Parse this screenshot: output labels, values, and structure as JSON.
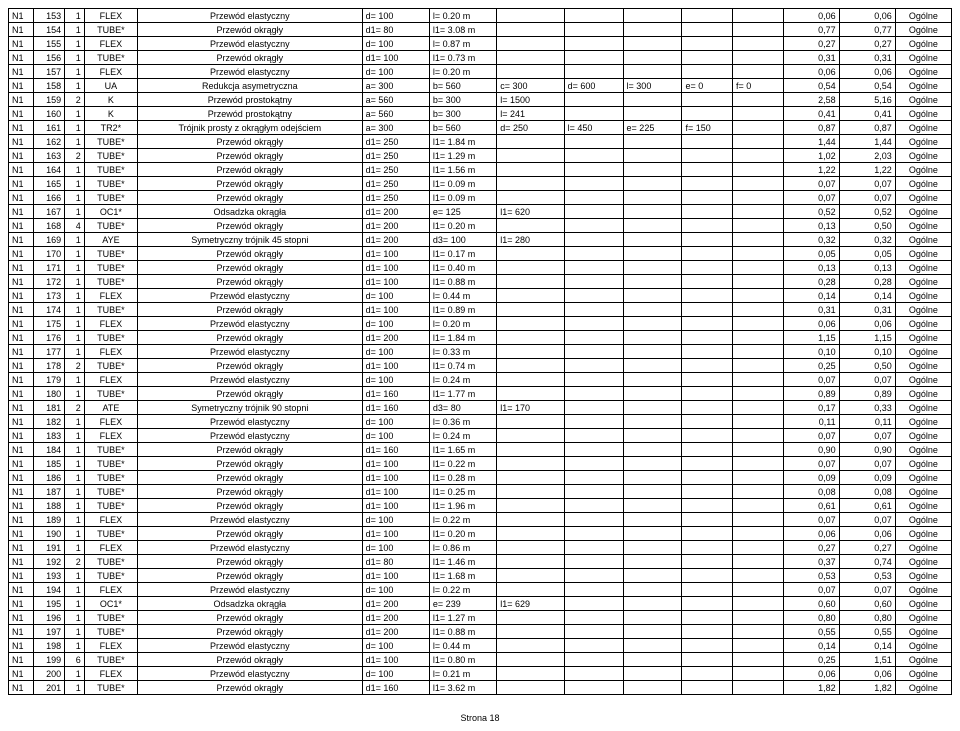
{
  "table": {
    "background_color": "#ffffff",
    "border_color": "#000000",
    "font_size": 9,
    "columns": [
      "c0",
      "c1",
      "c2",
      "c3",
      "c4",
      "c5",
      "c6",
      "c7",
      "c8",
      "c9",
      "c10",
      "c11",
      "c12",
      "c13",
      "c14"
    ],
    "rows": [
      [
        "N1",
        "153",
        "1",
        "FLEX",
        "Przewód elastyczny",
        "d= 100",
        "l= 0.20 m",
        "",
        "",
        "",
        "",
        "",
        "0,06",
        "0,06",
        "Ogólne"
      ],
      [
        "N1",
        "154",
        "1",
        "TUBE*",
        "Przewód okrągły",
        "d1= 80",
        "l1= 3.08 m",
        "",
        "",
        "",
        "",
        "",
        "0,77",
        "0,77",
        "Ogólne"
      ],
      [
        "N1",
        "155",
        "1",
        "FLEX",
        "Przewód elastyczny",
        "d= 100",
        "l= 0.87 m",
        "",
        "",
        "",
        "",
        "",
        "0,27",
        "0,27",
        "Ogólne"
      ],
      [
        "N1",
        "156",
        "1",
        "TUBE*",
        "Przewód okrągły",
        "d1= 100",
        "l1= 0.73 m",
        "",
        "",
        "",
        "",
        "",
        "0,31",
        "0,31",
        "Ogólne"
      ],
      [
        "N1",
        "157",
        "1",
        "FLEX",
        "Przewód elastyczny",
        "d= 100",
        "l= 0.20 m",
        "",
        "",
        "",
        "",
        "",
        "0,06",
        "0,06",
        "Ogólne"
      ],
      [
        "N1",
        "158",
        "1",
        "UA",
        "Redukcja asymetryczna",
        "a= 300",
        "b= 560",
        "c= 300",
        "d= 600",
        "l= 300",
        "e= 0",
        "f= 0",
        "0,54",
        "0,54",
        "Ogólne"
      ],
      [
        "N1",
        "159",
        "2",
        "K",
        "Przewód prostokątny",
        "a= 560",
        "b= 300",
        "l= 1500",
        "",
        "",
        "",
        "",
        "2,58",
        "5,16",
        "Ogólne"
      ],
      [
        "N1",
        "160",
        "1",
        "K",
        "Przewód prostokątny",
        "a= 560",
        "b= 300",
        "l= 241",
        "",
        "",
        "",
        "",
        "0,41",
        "0,41",
        "Ogólne"
      ],
      [
        "N1",
        "161",
        "1",
        "TR2*",
        "Trójnik prosty z okrągłym odejściem",
        "a= 300",
        "b= 560",
        "d= 250",
        "l= 450",
        "e= 225",
        "f= 150",
        "",
        "0,87",
        "0,87",
        "Ogólne"
      ],
      [
        "N1",
        "162",
        "1",
        "TUBE*",
        "Przewód okrągły",
        "d1= 250",
        "l1= 1.84 m",
        "",
        "",
        "",
        "",
        "",
        "1,44",
        "1,44",
        "Ogólne"
      ],
      [
        "N1",
        "163",
        "2",
        "TUBE*",
        "Przewód okrągły",
        "d1= 250",
        "l1= 1.29 m",
        "",
        "",
        "",
        "",
        "",
        "1,02",
        "2,03",
        "Ogólne"
      ],
      [
        "N1",
        "164",
        "1",
        "TUBE*",
        "Przewód okrągły",
        "d1= 250",
        "l1= 1.56 m",
        "",
        "",
        "",
        "",
        "",
        "1,22",
        "1,22",
        "Ogólne"
      ],
      [
        "N1",
        "165",
        "1",
        "TUBE*",
        "Przewód okrągły",
        "d1= 250",
        "l1= 0.09 m",
        "",
        "",
        "",
        "",
        "",
        "0,07",
        "0,07",
        "Ogólne"
      ],
      [
        "N1",
        "166",
        "1",
        "TUBE*",
        "Przewód okrągły",
        "d1= 250",
        "l1= 0.09 m",
        "",
        "",
        "",
        "",
        "",
        "0,07",
        "0,07",
        "Ogólne"
      ],
      [
        "N1",
        "167",
        "1",
        "OC1*",
        "Odsadzka okrągła",
        "d1= 200",
        "e= 125",
        "l1= 620",
        "",
        "",
        "",
        "",
        "0,52",
        "0,52",
        "Ogólne"
      ],
      [
        "N1",
        "168",
        "4",
        "TUBE*",
        "Przewód okrągły",
        "d1= 200",
        "l1= 0.20 m",
        "",
        "",
        "",
        "",
        "",
        "0,13",
        "0,50",
        "Ogólne"
      ],
      [
        "N1",
        "169",
        "1",
        "AYE",
        "Symetryczny trójnik 45 stopni",
        "d1= 200",
        "d3= 100",
        "l1= 280",
        "",
        "",
        "",
        "",
        "0,32",
        "0,32",
        "Ogólne"
      ],
      [
        "N1",
        "170",
        "1",
        "TUBE*",
        "Przewód okrągły",
        "d1= 100",
        "l1= 0.17 m",
        "",
        "",
        "",
        "",
        "",
        "0,05",
        "0,05",
        "Ogólne"
      ],
      [
        "N1",
        "171",
        "1",
        "TUBE*",
        "Przewód okrągły",
        "d1= 100",
        "l1= 0.40 m",
        "",
        "",
        "",
        "",
        "",
        "0,13",
        "0,13",
        "Ogólne"
      ],
      [
        "N1",
        "172",
        "1",
        "TUBE*",
        "Przewód okrągły",
        "d1= 100",
        "l1= 0.88 m",
        "",
        "",
        "",
        "",
        "",
        "0,28",
        "0,28",
        "Ogólne"
      ],
      [
        "N1",
        "173",
        "1",
        "FLEX",
        "Przewód elastyczny",
        "d= 100",
        "l= 0.44 m",
        "",
        "",
        "",
        "",
        "",
        "0,14",
        "0,14",
        "Ogólne"
      ],
      [
        "N1",
        "174",
        "1",
        "TUBE*",
        "Przewód okrągły",
        "d1= 100",
        "l1= 0.89 m",
        "",
        "",
        "",
        "",
        "",
        "0,31",
        "0,31",
        "Ogólne"
      ],
      [
        "N1",
        "175",
        "1",
        "FLEX",
        "Przewód elastyczny",
        "d= 100",
        "l= 0.20 m",
        "",
        "",
        "",
        "",
        "",
        "0,06",
        "0,06",
        "Ogólne"
      ],
      [
        "N1",
        "176",
        "1",
        "TUBE*",
        "Przewód okrągły",
        "d1= 200",
        "l1= 1.84 m",
        "",
        "",
        "",
        "",
        "",
        "1,15",
        "1,15",
        "Ogólne"
      ],
      [
        "N1",
        "177",
        "1",
        "FLEX",
        "Przewód elastyczny",
        "d= 100",
        "l= 0.33 m",
        "",
        "",
        "",
        "",
        "",
        "0,10",
        "0,10",
        "Ogólne"
      ],
      [
        "N1",
        "178",
        "2",
        "TUBE*",
        "Przewód okrągły",
        "d1= 100",
        "l1= 0.74 m",
        "",
        "",
        "",
        "",
        "",
        "0,25",
        "0,50",
        "Ogólne"
      ],
      [
        "N1",
        "179",
        "1",
        "FLEX",
        "Przewód elastyczny",
        "d= 100",
        "l= 0.24 m",
        "",
        "",
        "",
        "",
        "",
        "0,07",
        "0,07",
        "Ogólne"
      ],
      [
        "N1",
        "180",
        "1",
        "TUBE*",
        "Przewód okrągły",
        "d1= 160",
        "l1= 1.77 m",
        "",
        "",
        "",
        "",
        "",
        "0,89",
        "0,89",
        "Ogólne"
      ],
      [
        "N1",
        "181",
        "2",
        "ATE",
        "Symetryczny trójnik 90 stopni",
        "d1= 160",
        "d3= 80",
        "l1= 170",
        "",
        "",
        "",
        "",
        "0,17",
        "0,33",
        "Ogólne"
      ],
      [
        "N1",
        "182",
        "1",
        "FLEX",
        "Przewód elastyczny",
        "d= 100",
        "l= 0.36 m",
        "",
        "",
        "",
        "",
        "",
        "0,11",
        "0,11",
        "Ogólne"
      ],
      [
        "N1",
        "183",
        "1",
        "FLEX",
        "Przewód elastyczny",
        "d= 100",
        "l= 0.24 m",
        "",
        "",
        "",
        "",
        "",
        "0,07",
        "0,07",
        "Ogólne"
      ],
      [
        "N1",
        "184",
        "1",
        "TUBE*",
        "Przewód okrągły",
        "d1= 160",
        "l1= 1.65 m",
        "",
        "",
        "",
        "",
        "",
        "0,90",
        "0,90",
        "Ogólne"
      ],
      [
        "N1",
        "185",
        "1",
        "TUBE*",
        "Przewód okrągły",
        "d1= 100",
        "l1= 0.22 m",
        "",
        "",
        "",
        "",
        "",
        "0,07",
        "0,07",
        "Ogólne"
      ],
      [
        "N1",
        "186",
        "1",
        "TUBE*",
        "Przewód okrągły",
        "d1= 100",
        "l1= 0.28 m",
        "",
        "",
        "",
        "",
        "",
        "0,09",
        "0,09",
        "Ogólne"
      ],
      [
        "N1",
        "187",
        "1",
        "TUBE*",
        "Przewód okrągły",
        "d1= 100",
        "l1= 0.25 m",
        "",
        "",
        "",
        "",
        "",
        "0,08",
        "0,08",
        "Ogólne"
      ],
      [
        "N1",
        "188",
        "1",
        "TUBE*",
        "Przewód okrągły",
        "d1= 100",
        "l1= 1.96 m",
        "",
        "",
        "",
        "",
        "",
        "0,61",
        "0,61",
        "Ogólne"
      ],
      [
        "N1",
        "189",
        "1",
        "FLEX",
        "Przewód elastyczny",
        "d= 100",
        "l= 0.22 m",
        "",
        "",
        "",
        "",
        "",
        "0,07",
        "0,07",
        "Ogólne"
      ],
      [
        "N1",
        "190",
        "1",
        "TUBE*",
        "Przewód okrągły",
        "d1= 100",
        "l1= 0.20 m",
        "",
        "",
        "",
        "",
        "",
        "0,06",
        "0,06",
        "Ogólne"
      ],
      [
        "N1",
        "191",
        "1",
        "FLEX",
        "Przewód elastyczny",
        "d= 100",
        "l= 0.86 m",
        "",
        "",
        "",
        "",
        "",
        "0,27",
        "0,27",
        "Ogólne"
      ],
      [
        "N1",
        "192",
        "2",
        "TUBE*",
        "Przewód okrągły",
        "d1= 80",
        "l1= 1.46 m",
        "",
        "",
        "",
        "",
        "",
        "0,37",
        "0,74",
        "Ogólne"
      ],
      [
        "N1",
        "193",
        "1",
        "TUBE*",
        "Przewód okrągły",
        "d1= 100",
        "l1= 1.68 m",
        "",
        "",
        "",
        "",
        "",
        "0,53",
        "0,53",
        "Ogólne"
      ],
      [
        "N1",
        "194",
        "1",
        "FLEX",
        "Przewód elastyczny",
        "d= 100",
        "l= 0.22 m",
        "",
        "",
        "",
        "",
        "",
        "0,07",
        "0,07",
        "Ogólne"
      ],
      [
        "N1",
        "195",
        "1",
        "OC1*",
        "Odsadzka okrągła",
        "d1= 200",
        "e= 239",
        "l1= 629",
        "",
        "",
        "",
        "",
        "0,60",
        "0,60",
        "Ogólne"
      ],
      [
        "N1",
        "196",
        "1",
        "TUBE*",
        "Przewód okrągły",
        "d1= 200",
        "l1= 1.27 m",
        "",
        "",
        "",
        "",
        "",
        "0,80",
        "0,80",
        "Ogólne"
      ],
      [
        "N1",
        "197",
        "1",
        "TUBE*",
        "Przewód okrągły",
        "d1= 200",
        "l1= 0.88 m",
        "",
        "",
        "",
        "",
        "",
        "0,55",
        "0,55",
        "Ogólne"
      ],
      [
        "N1",
        "198",
        "1",
        "FLEX",
        "Przewód elastyczny",
        "d= 100",
        "l= 0.44 m",
        "",
        "",
        "",
        "",
        "",
        "0,14",
        "0,14",
        "Ogólne"
      ],
      [
        "N1",
        "199",
        "6",
        "TUBE*",
        "Przewód okrągły",
        "d1= 100",
        "l1= 0.80 m",
        "",
        "",
        "",
        "",
        "",
        "0,25",
        "1,51",
        "Ogólne"
      ],
      [
        "N1",
        "200",
        "1",
        "FLEX",
        "Przewód elastyczny",
        "d= 100",
        "l= 0.21 m",
        "",
        "",
        "",
        "",
        "",
        "0,06",
        "0,06",
        "Ogólne"
      ],
      [
        "N1",
        "201",
        "1",
        "TUBE*",
        "Przewód okrągły",
        "d1= 160",
        "l1= 3.62 m",
        "",
        "",
        "",
        "",
        "",
        "1,82",
        "1,82",
        "Ogólne"
      ]
    ]
  },
  "footer": "Strona 18"
}
